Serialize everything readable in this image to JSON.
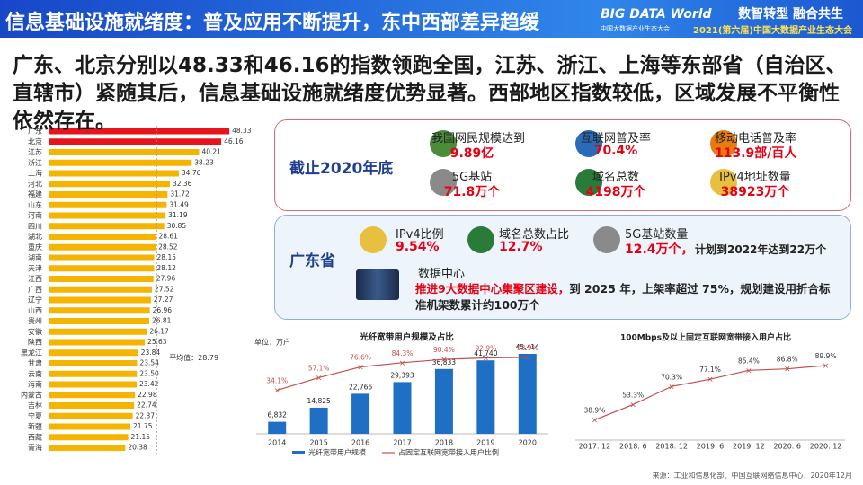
{
  "header": {
    "title": "信息基础设施就绪度：普及应用不断提升，东中西部差异趋缓",
    "logo": "BIG DATA World",
    "logo_sub": "中国大数据产业生态大会",
    "slogan": "数智转型 融合共生",
    "event": "2021(第六届)中国大数据产业生态大会"
  },
  "summary": "广东、北京分别以48.33和46.16的指数领跑全国，江苏、浙江、上海等东部省（自治区、直辖市）紧随其后，信息基础设施就绪度优势显著。西部地区指数较低，区域发展不平衡性依然存在。",
  "national": {
    "title": "截止2020年底",
    "items": [
      {
        "label": "我国网民规模达到",
        "value": "9.89亿"
      },
      {
        "label": "互联网普及率",
        "value": "70.4%"
      },
      {
        "label": "移动电话普及率",
        "value": "113.9部/百人"
      },
      {
        "label": "5G基站",
        "value": "71.8万个"
      },
      {
        "label": "域名总数",
        "value": "4198万个"
      },
      {
        "label": "IPv4地址数量",
        "value": "38923万个"
      }
    ]
  },
  "guangdong": {
    "title": "广东省",
    "items": [
      {
        "label": "IPv4比例",
        "value": "9.54%"
      },
      {
        "label": "域名总数占比",
        "value": "12.7%"
      },
      {
        "label": "5G基站数量",
        "value": "12.4万个，",
        "note": "计划到2022年达到22万个"
      }
    ],
    "datacenter": {
      "label": "数据中心",
      "highlight": "推进9大数据中心集聚区建设，",
      "text": "到 2025 年，上架率超过 75%，规划建设用折合标准机架数累计约100万个"
    }
  },
  "chart_data": [
    {
      "type": "bar",
      "orientation": "horizontal",
      "categories": [
        "广东",
        "北京",
        "江苏",
        "浙江",
        "上海",
        "河北",
        "福建",
        "山东",
        "河南",
        "四川",
        "湖北",
        "重庆",
        "湖南",
        "天津",
        "江西",
        "广西",
        "辽宁",
        "山西",
        "贵州",
        "安徽",
        "陕西",
        "黑龙江",
        "甘肃",
        "云南",
        "海南",
        "内蒙古",
        "吉林",
        "宁夏",
        "新疆",
        "西藏",
        "青海"
      ],
      "values": [
        48.33,
        46.16,
        40.21,
        38.23,
        34.76,
        32.36,
        31.72,
        31.49,
        31.19,
        30.85,
        28.61,
        28.52,
        28.15,
        28.12,
        27.96,
        27.52,
        27.27,
        26.96,
        26.81,
        26.17,
        25.63,
        23.84,
        23.54,
        23.5,
        23.42,
        22.98,
        22.74,
        22.37,
        21.75,
        21.15,
        20.38
      ],
      "value_labels": [
        "48.33",
        "46.16",
        "40.21",
        "38.23",
        "34.76",
        "32.36",
        "31.72",
        "31.49",
        "31.19",
        "30.85",
        "28.61",
        "28.52",
        "28.15",
        "28.12",
        "27.96",
        "27.52",
        "27.27",
        "26.96",
        "26.81",
        "26.17",
        "25.63",
        "23.84",
        "23.54",
        "23.50",
        "23.42",
        "22.98",
        "22.74",
        "22.37",
        "21.75",
        "21.15",
        "20.38"
      ],
      "colors": [
        "#e8141c",
        "#e8141c",
        "#f5b400",
        "#f5b400",
        "#f5b400",
        "#f5b400",
        "#f5b400",
        "#f5b400",
        "#f5b400",
        "#f5b400",
        "#f5b400",
        "#f5b400",
        "#f5b400",
        "#f5b400",
        "#f5b400",
        "#f5b400",
        "#f5b400",
        "#f5b400",
        "#f5b400",
        "#f5b400",
        "#f5b400",
        "#f5b400",
        "#f5b400",
        "#f5b400",
        "#f5b400",
        "#f5b400",
        "#f5b400",
        "#f5b400",
        "#f5b400",
        "#f5b400",
        "#f5b400"
      ],
      "xlim": [
        0,
        50
      ],
      "average": {
        "value": 28.79,
        "label": "平均值：28.79"
      }
    },
    {
      "type": "combo",
      "title": "光纤宽带用户规模及占比",
      "unit": "单位：万户",
      "categories": [
        "2014",
        "2015",
        "2016",
        "2017",
        "2018",
        "2019",
        "2020"
      ],
      "series": [
        {
          "name": "光纤宽带用户规模",
          "type": "bar",
          "color": "#1f6fc5",
          "values": [
            6832,
            14825,
            22766,
            29393,
            36833,
            41740,
            45414
          ],
          "value_labels": [
            "6,832",
            "14,825",
            "22,766",
            "29,393",
            "36,833",
            "41,740",
            "45,414"
          ]
        },
        {
          "name": "占固定互联网宽带接入用户比例",
          "type": "line",
          "axis": "y2",
          "color": "#c0504d",
          "values": [
            34.1,
            57.1,
            76.6,
            84.3,
            90.4,
            92.9,
            93.9
          ],
          "value_labels": [
            "34.1%",
            "57.1%",
            "76.6%",
            "84.3%",
            "90.4%",
            "92.9%",
            "93.9%"
          ]
        }
      ],
      "ylim": [
        0,
        50000
      ],
      "y2lim": [
        -45,
        115
      ]
    },
    {
      "type": "line",
      "title": "100Mbps及以上固定互联网宽带接入用户占比",
      "categories": [
        "2017. 12",
        "2018. 6",
        "2018. 12",
        "2019. 6",
        "2019. 12",
        "2020. 6",
        "2020. 12"
      ],
      "series": [
        {
          "name": null,
          "color": "#c0504d",
          "values": [
            38.9,
            53.3,
            70.3,
            77.1,
            85.4,
            86.8,
            89.9
          ],
          "value_labels": [
            "38.9%",
            "53.3%",
            "70.3%",
            "77.1%",
            "85.4%",
            "86.8%",
            "89.9%"
          ]
        }
      ],
      "ylim": [
        20,
        100
      ]
    }
  ],
  "source": "来源：工业和信息化部、中国互联网络信息中心，2020年12月"
}
